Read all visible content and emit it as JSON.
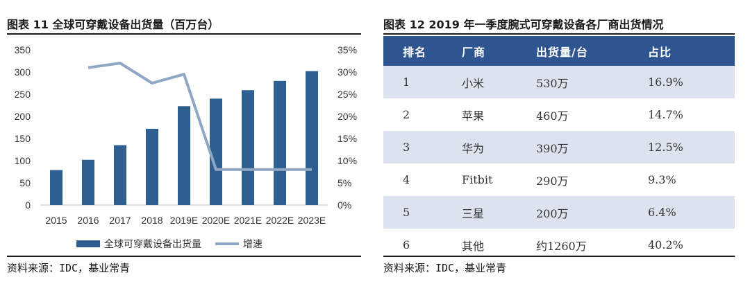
{
  "left": {
    "title": "图表 11 全球可穿戴设备出货量（百万台）",
    "source": "资料来源：IDC，基业常青"
  },
  "right": {
    "title": "图表 12 2019 年一季度腕式可穿戴设备各厂商出货情况",
    "source": "资料来源：IDC，基业常青",
    "table": {
      "headers": [
        "排名",
        "厂商",
        "出货量/台",
        "占比"
      ],
      "rows": [
        [
          "1",
          "小米",
          "530万",
          "16.9%"
        ],
        [
          "2",
          "苹果",
          "460万",
          "14.7%"
        ],
        [
          "3",
          "华为",
          "390万",
          "12.5%"
        ],
        [
          "4",
          "Fitbit",
          "290万",
          "9.3%"
        ],
        [
          "5",
          "三星",
          "200万",
          "6.4%"
        ],
        [
          "6",
          "其他",
          "约1260万",
          "40.2%"
        ]
      ]
    }
  },
  "colors": {
    "bar": "#2f5f91",
    "line": "#8fa6c4",
    "header": "#2f5591",
    "shade": "#dde3ee"
  },
  "chart_data": {
    "type": "bar",
    "title": "图表 11 全球可穿戴设备出货量（百万台）",
    "categories": [
      "2015",
      "2016",
      "2017",
      "2018",
      "2019E",
      "2020E",
      "2021E",
      "2022E",
      "2023E"
    ],
    "series": [
      {
        "name": "全球可穿戴设备出货量",
        "type": "bar",
        "axis": "left",
        "values": [
          79,
          102,
          135,
          172,
          223,
          240,
          259,
          280,
          302
        ]
      },
      {
        "name": "增速",
        "type": "line",
        "axis": "right",
        "values": [
          null,
          0.31,
          0.32,
          0.275,
          0.295,
          0.08,
          0.08,
          0.08,
          0.08
        ]
      }
    ],
    "y_left": {
      "min": 0,
      "max": 350,
      "ticks": [
        "0",
        "50",
        "100",
        "150",
        "200",
        "250",
        "300",
        "350"
      ]
    },
    "y_right": {
      "min": 0,
      "max": 0.35,
      "ticks": [
        "0%",
        "5%",
        "10%",
        "15%",
        "20%",
        "25%",
        "30%",
        "35%"
      ]
    },
    "grid": false,
    "legend": "bottom"
  }
}
